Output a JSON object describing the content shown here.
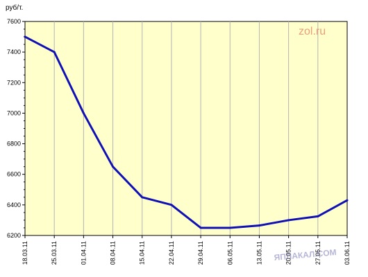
{
  "chart_data": {
    "type": "line",
    "title": "",
    "ylabel": "руб/т.",
    "xlabel": "",
    "ylim": [
      6200,
      7600
    ],
    "yticks": [
      6200,
      6400,
      6600,
      6800,
      7000,
      7200,
      7400,
      7600
    ],
    "ytick_labels": [
      "6200",
      "6400",
      "6600",
      "6800",
      "7000",
      "7200",
      "7400",
      "7600"
    ],
    "categories": [
      "18.03.11",
      "25.03.11",
      "01.04.11",
      "08.04.11",
      "15.04.11",
      "22.04.11",
      "29.04.11",
      "06.05.11",
      "13.05.11",
      "20.05.11",
      "27.05.11",
      "03.06.11"
    ],
    "values": [
      7500,
      7400,
      7000,
      6650,
      6450,
      6400,
      6250,
      6250,
      6265,
      6300,
      6325,
      6430
    ],
    "grid": true,
    "legend": "none"
  },
  "watermark": {
    "text": "zol.ru",
    "color": "#e8a07a"
  },
  "stamp": {
    "text": "ЯПЛАКАЛ.COM",
    "color": "#7a7ab8"
  },
  "colors": {
    "plot_bg": "#ffffcc",
    "line": "#1010b4",
    "grid": "#b4b4b4",
    "axis": "#000000"
  }
}
